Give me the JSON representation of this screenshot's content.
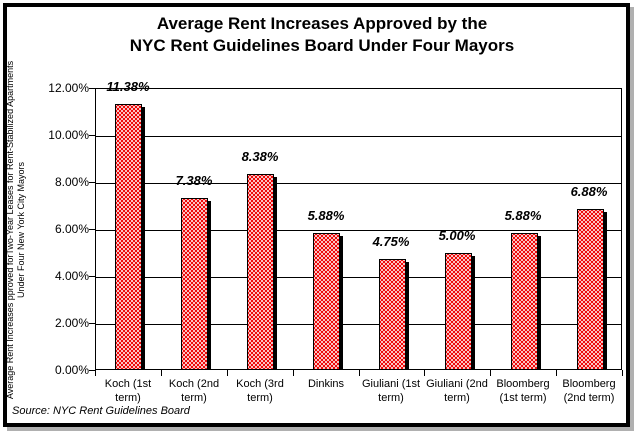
{
  "figure": {
    "title_line1": "Average Rent Increases Approved by the",
    "title_line2": "NYC Rent Guidelines Board Under Four Mayors",
    "y_axis_title_line1": "Average Rent Increases pproved forTwo-Year Leases for Rent-Stabilized Apartments",
    "y_axis_title_line2": "Under Four New York City Mayors",
    "source": "Source:  NYC Rent Guidelines Board"
  },
  "chart_data": {
    "type": "bar",
    "title": "Average Rent Increases Approved by the NYC Rent Guidelines Board Under Four Mayors",
    "xlabel": "",
    "ylabel": "Average Rent Increases pproved forTwo-Year Leases for Rent-Stabilized Apartments Under Four New York City Mayors",
    "categories": [
      "Koch (1st term)",
      "Koch (2nd term)",
      "Koch (3rd term)",
      "Dinkins",
      "Giuliani (1st term)",
      "Giuliani (2nd term)",
      "Bloomberg (1st term)",
      "Bloomberg (2nd term)"
    ],
    "values": [
      11.38,
      7.38,
      8.38,
      5.88,
      4.75,
      5.0,
      5.88,
      6.88
    ],
    "data_labels": [
      "11.38%",
      "7.38%",
      "8.38%",
      "5.88%",
      "4.75%",
      "5.00%",
      "5.88%",
      "6.88%"
    ],
    "ylim": [
      0,
      12
    ],
    "ytick_interval": 2,
    "yticks": [
      12,
      10,
      8,
      6,
      4,
      2,
      0
    ],
    "ytick_labels": [
      "12.00%",
      "10.00%",
      "8.00%",
      "6.00%",
      "4.00%",
      "2.00%",
      "0.00%"
    ],
    "grid": true,
    "legend": "none",
    "bar_color": "#ee0a0a",
    "bar_pattern": "white-dots",
    "source": "Source:  NYC Rent Guidelines Board"
  }
}
